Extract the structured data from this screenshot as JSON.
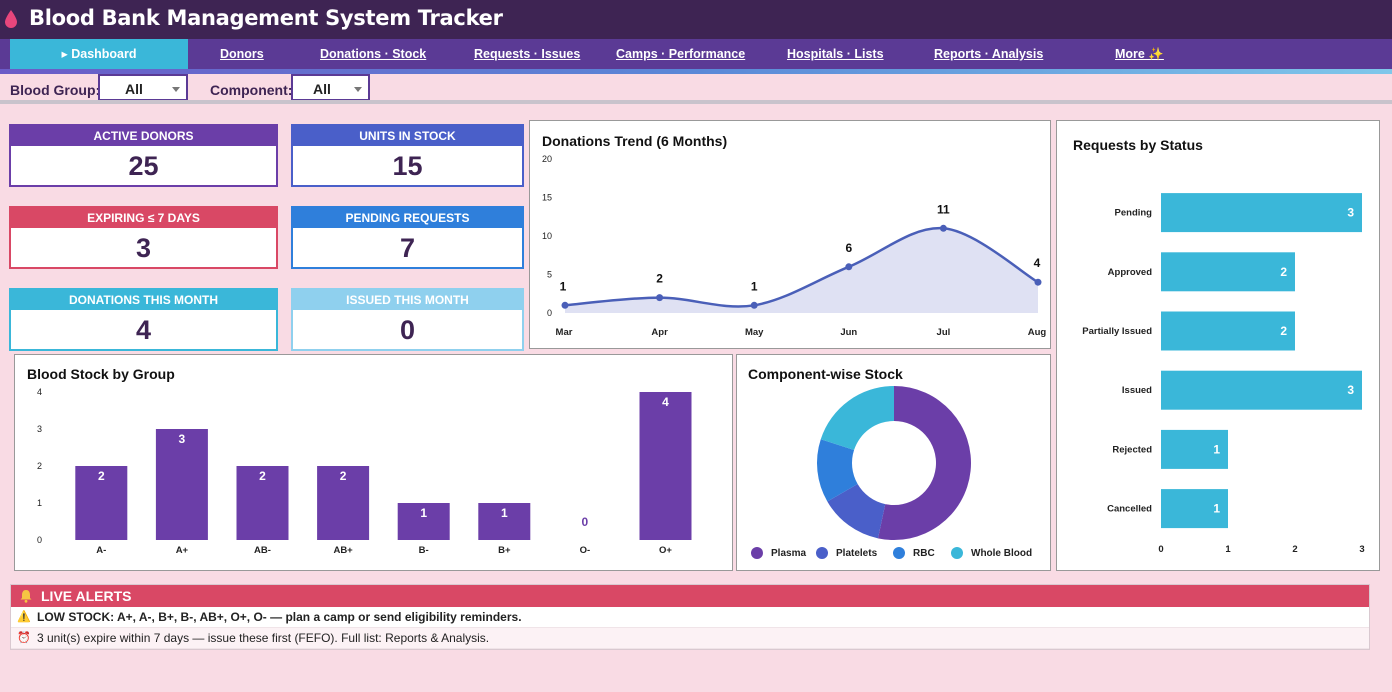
{
  "header": {
    "title": "Blood Bank Management System Tracker",
    "icon": "blood-drop-icon"
  },
  "nav": {
    "tabs": [
      {
        "label": "▸ Dashboard",
        "active": true
      },
      {
        "label": "Donors"
      },
      {
        "label": "Donations · Stock"
      },
      {
        "label": "Requests · Issues"
      },
      {
        "label": "Camps · Performance"
      },
      {
        "label": "Hospitals · Lists"
      },
      {
        "label": "Reports · Analysis"
      },
      {
        "label": "More ✨"
      }
    ]
  },
  "filters": {
    "blood_group_label": "Blood Group:",
    "blood_group_value": "All",
    "component_label": "Component:",
    "component_value": "All"
  },
  "kpis": [
    {
      "label": "ACTIVE DONORS",
      "value": "25",
      "color": "#6b3ea8"
    },
    {
      "label": "UNITS IN STOCK",
      "value": "15",
      "color": "#4a5fc9"
    },
    {
      "label": "EXPIRING ≤ 7 DAYS",
      "value": "3",
      "color": "#d94865"
    },
    {
      "label": "PENDING REQUESTS",
      "value": "7",
      "color": "#2f7fdb"
    },
    {
      "label": "DONATIONS THIS MONTH",
      "value": "4",
      "color": "#3ab7d9"
    },
    {
      "label": "ISSUED THIS MONTH",
      "value": "0",
      "color": "#8fd0ee"
    }
  ],
  "chart_data": [
    {
      "type": "area",
      "title": "Donations Trend (6 Months)",
      "categories": [
        "Mar",
        "Apr",
        "May",
        "Jun",
        "Jul",
        "Aug"
      ],
      "values": [
        1,
        2,
        1,
        6,
        11,
        4
      ],
      "yticks": [
        0,
        5,
        10,
        15,
        20
      ],
      "ylim": [
        0,
        20
      ],
      "color": "#4a5fb8",
      "fill": "#dfe1f3"
    },
    {
      "type": "bar",
      "title": "Requests by Status",
      "orientation": "horizontal",
      "categories": [
        "Pending",
        "Approved",
        "Partially Issued",
        "Issued",
        "Rejected",
        "Cancelled"
      ],
      "values": [
        3,
        2,
        2,
        3,
        1,
        1
      ],
      "xticks": [
        0,
        1,
        2,
        3
      ],
      "xlim": [
        0,
        3
      ],
      "color": "#3ab7d9"
    },
    {
      "type": "bar",
      "title": "Blood Stock by Group",
      "categories": [
        "A-",
        "A+",
        "AB-",
        "AB+",
        "B-",
        "B+",
        "O-",
        "O+"
      ],
      "values": [
        2,
        3,
        2,
        2,
        1,
        1,
        0,
        4
      ],
      "yticks": [
        0,
        1,
        2,
        3,
        4
      ],
      "ylim": [
        0,
        4
      ],
      "color": "#6b3ea8"
    },
    {
      "type": "pie",
      "title": "Component-wise Stock",
      "donut": true,
      "categories": [
        "Plasma",
        "Platelets",
        "RBC",
        "Whole Blood"
      ],
      "values": [
        8,
        2,
        2,
        3
      ],
      "colors": [
        "#6b3ea8",
        "#4a5fc9",
        "#2f7fdb",
        "#3ab7d9"
      ],
      "legend": "bottom"
    }
  ],
  "alerts": {
    "title": "LIVE ALERTS",
    "items": [
      {
        "icon": "⚠️",
        "text": "LOW STOCK: A+, A-, B+, B-, AB+, O+, O-  —  plan a camp or send eligibility reminders.",
        "bold": true
      },
      {
        "icon": "⏰",
        "text": "3 unit(s) expire within 7 days — issue these first (FEFO). Full list: Reports & Analysis.",
        "bold": false
      }
    ]
  }
}
